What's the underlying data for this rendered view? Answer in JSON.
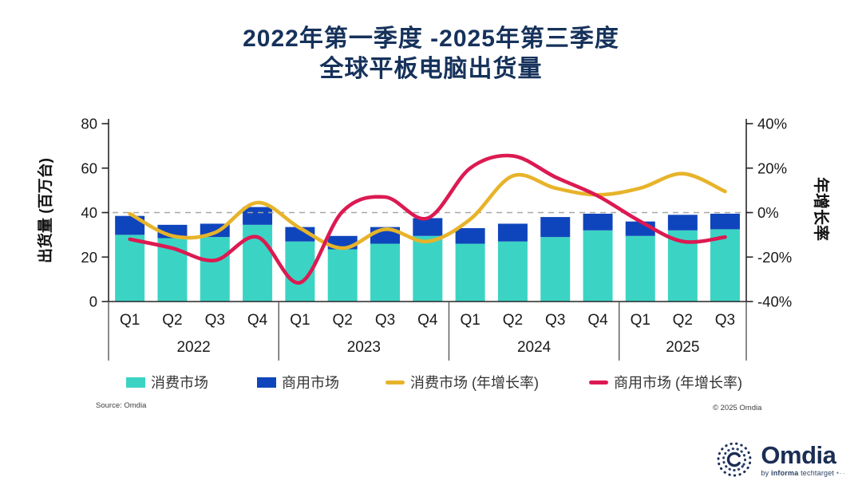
{
  "title": {
    "line1": "2022年第一季度 -2025年第三季度",
    "line2": "全球平板电脑出货量"
  },
  "chart_data": {
    "type": "bar",
    "subtype": "stacked-bars-with-growth-lines",
    "title": "2022年第一季度 -2025年第三季度 全球平板电脑出货量",
    "years": [
      {
        "label": "2022",
        "quarters": [
          "Q1",
          "Q2",
          "Q3",
          "Q4"
        ]
      },
      {
        "label": "2023",
        "quarters": [
          "Q1",
          "Q2",
          "Q3",
          "Q4"
        ]
      },
      {
        "label": "2024",
        "quarters": [
          "Q1",
          "Q2",
          "Q3",
          "Q4"
        ]
      },
      {
        "label": "2025",
        "quarters": [
          "Q1",
          "Q2",
          "Q3"
        ]
      }
    ],
    "left_axis": {
      "title": "出货量 (百万台)",
      "ticks": [
        0,
        20,
        40,
        60,
        80
      ],
      "range": [
        0,
        80
      ],
      "unit": "million units"
    },
    "right_axis": {
      "title": "年增长率",
      "tick_labels": [
        "-40%",
        "-20%",
        "0%",
        "20%",
        "40%"
      ],
      "tick_values": [
        -40,
        -20,
        0,
        20,
        40
      ],
      "range": [
        -40,
        40
      ]
    },
    "gridline": {
      "at_right_value": 0,
      "style": "dashed",
      "color": "#A8A8A8"
    },
    "series": [
      {
        "name": "消费市场",
        "type": "bar",
        "stacked": true,
        "color": "#3BD4C4",
        "values": [
          30,
          28.5,
          29,
          34.5,
          27,
          23.5,
          26,
          29.5,
          26,
          27,
          29,
          32,
          29.5,
          32,
          32.5
        ]
      },
      {
        "name": "商用市场",
        "type": "bar",
        "stacked": true,
        "color": "#0F45BC",
        "values": [
          8.5,
          6,
          6,
          8,
          6.5,
          6,
          7.5,
          8,
          7,
          8,
          9,
          7.5,
          6.5,
          7,
          7
        ]
      },
      {
        "name": "消费市场 (年增长率)",
        "type": "line",
        "axis": "right",
        "color": "#E7B32A",
        "values": [
          -0.5,
          -10.5,
          -9,
          4.5,
          -7,
          -16,
          -7.5,
          -13,
          -3,
          16.5,
          11,
          8,
          11,
          17.5,
          9.5
        ]
      },
      {
        "name": "商用市场 (年增长率)",
        "type": "line",
        "axis": "right",
        "color": "#DC1A52",
        "values": [
          -12,
          -16,
          -21.5,
          -11,
          -31.5,
          0.5,
          7,
          -2.5,
          20,
          25.5,
          16,
          7.5,
          -4,
          -13,
          -11
        ]
      }
    ],
    "legend_position": "bottom",
    "axis_text_color": "#1A1A1A"
  },
  "footer": {
    "source": "Source: Omdia",
    "copyright": "© 2025 Omdia"
  },
  "logo": {
    "wordmark": "Omdia",
    "tagline_by": "by",
    "tagline_brand": "informa",
    "tagline_rest": "techtarget",
    "tagline_dots": "•··"
  }
}
